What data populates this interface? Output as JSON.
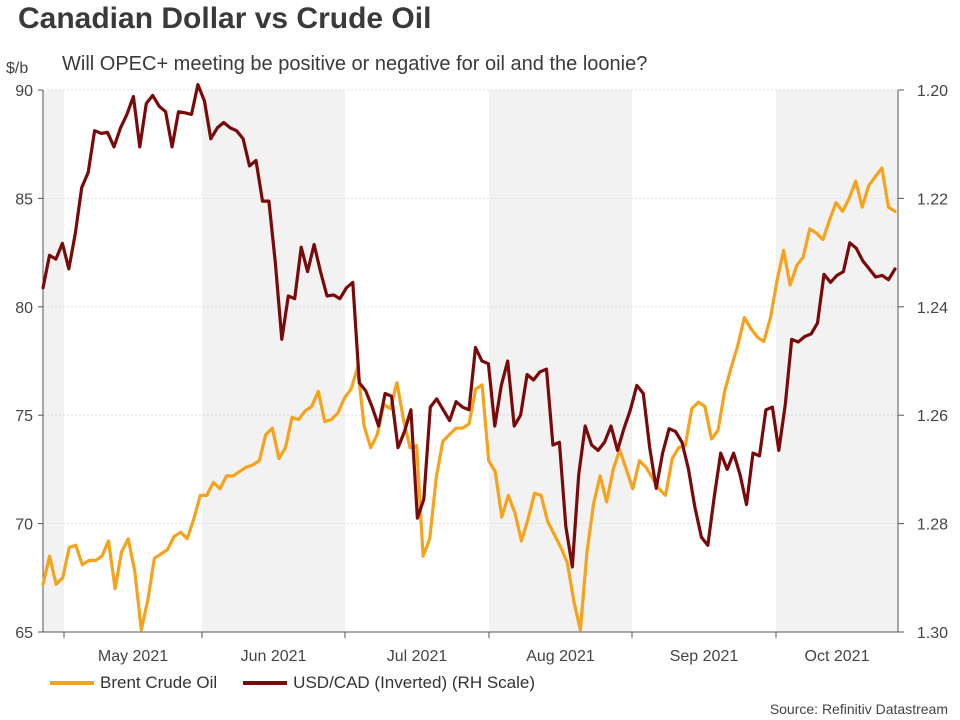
{
  "chart_data": {
    "type": "line",
    "title": "Canadian Dollar vs Crude Oil",
    "subtitle": "Will OPEC+ meeting be positive or negative for oil and the loonie?",
    "ylabel_left": "$/b",
    "ylim_left": [
      65,
      90
    ],
    "ylim_right_inverted": [
      1.2,
      1.3
    ],
    "yticks_left": [
      "90",
      "85",
      "80",
      "75",
      "70",
      "65"
    ],
    "yticks_right": [
      "1.20",
      "1.22",
      "1.24",
      "1.26",
      "1.28",
      "1.30"
    ],
    "month_labels": [
      "May 2021",
      "Jun 2021",
      "Jul 2021",
      "Aug 2021",
      "Sep 2021",
      "Oct 2021"
    ],
    "shaded_months": [
      "April 2021",
      "June 2021",
      "August 2021",
      "October 2021"
    ],
    "series": [
      {
        "name": "Brent Crude Oil",
        "axis": "left",
        "color": "#f7a21b",
        "values": [
          67.2,
          68.5,
          67.2,
          67.5,
          68.9,
          69.0,
          68.1,
          68.3,
          68.3,
          68.5,
          69.2,
          67.0,
          68.7,
          69.3,
          67.8,
          65.1,
          66.5,
          68.4,
          68.6,
          68.8,
          69.4,
          69.6,
          69.3,
          70.2,
          71.3,
          71.3,
          71.9,
          71.6,
          72.2,
          72.2,
          72.4,
          72.6,
          72.7,
          72.9,
          74.1,
          74.4,
          73.0,
          73.5,
          74.9,
          74.8,
          75.2,
          75.4,
          76.1,
          74.7,
          74.8,
          75.1,
          75.8,
          76.2,
          77.2,
          74.5,
          73.5,
          74.1,
          75.5,
          75.3,
          76.5,
          74.8,
          73.5,
          73.6,
          68.5,
          69.3,
          72.1,
          73.8,
          74.1,
          74.4,
          74.4,
          74.6,
          76.2,
          76.4,
          72.9,
          72.4,
          70.3,
          71.3,
          70.5,
          69.2,
          70.2,
          71.4,
          71.3,
          70.1,
          69.5,
          68.9,
          68.2,
          66.4,
          65.1,
          68.7,
          70.9,
          72.2,
          71.0,
          72.5,
          73.4,
          72.5,
          71.6,
          72.9,
          72.6,
          72.1,
          71.6,
          71.3,
          73.0,
          73.5,
          73.6,
          75.3,
          75.6,
          75.4,
          73.9,
          74.3,
          76.1,
          77.2,
          78.2,
          79.5,
          79.0,
          78.6,
          78.4,
          79.5,
          81.2,
          82.6,
          81.0,
          81.9,
          82.3,
          83.6,
          83.4,
          83.1,
          84.0,
          84.8,
          84.4,
          85.0,
          85.8,
          84.6,
          85.6,
          86.0,
          86.4,
          84.6,
          84.4
        ]
      },
      {
        "name": "USD/CAD (Inverted) (RH Scale)",
        "axis": "right",
        "color": "#7a0a0a",
        "values": [
          1.2365,
          1.2305,
          1.2312,
          1.2283,
          1.233,
          1.2265,
          1.218,
          1.2152,
          1.2075,
          1.208,
          1.2078,
          1.2105,
          1.207,
          1.2045,
          1.2012,
          1.2105,
          1.2025,
          1.201,
          1.203,
          1.204,
          1.2105,
          1.204,
          1.2042,
          1.2045,
          1.199,
          1.202,
          1.209,
          1.207,
          1.206,
          1.207,
          1.2075,
          1.209,
          1.214,
          1.213,
          1.2205,
          1.2205,
          1.232,
          1.246,
          1.238,
          1.2385,
          1.229,
          1.2335,
          1.2285,
          1.2335,
          1.238,
          1.2378,
          1.2385,
          1.2365,
          1.2355,
          1.254,
          1.2555,
          1.2585,
          1.262,
          1.256,
          1.2565,
          1.266,
          1.263,
          1.259,
          1.279,
          1.2755,
          1.2585,
          1.257,
          1.259,
          1.261,
          1.2575,
          1.2585,
          1.259,
          1.2475,
          1.25,
          1.2505,
          1.262,
          1.2545,
          1.25,
          1.262,
          1.26,
          1.2525,
          1.2535,
          1.252,
          1.2515,
          1.2655,
          1.265,
          1.2805,
          1.288,
          1.271,
          1.262,
          1.2655,
          1.2665,
          1.265,
          1.262,
          1.2665,
          1.2625,
          1.259,
          1.2545,
          1.256,
          1.266,
          1.2735,
          1.267,
          1.2625,
          1.263,
          1.265,
          1.27,
          1.277,
          1.2825,
          1.284,
          1.275,
          1.267,
          1.27,
          1.267,
          1.271,
          1.2765,
          1.267,
          1.2675,
          1.259,
          1.2585,
          1.2665,
          1.258,
          1.246,
          1.2465,
          1.2455,
          1.245,
          1.243,
          1.234,
          1.2355,
          1.2342,
          1.2335,
          1.2282,
          1.2292,
          1.2315,
          1.233,
          1.2345,
          1.2342,
          1.235,
          1.233
        ]
      }
    ],
    "legend": [
      "Brent Crude Oil",
      "USD/CAD (Inverted) (RH Scale)"
    ],
    "source": "Source: Refinitiv Datastream"
  }
}
